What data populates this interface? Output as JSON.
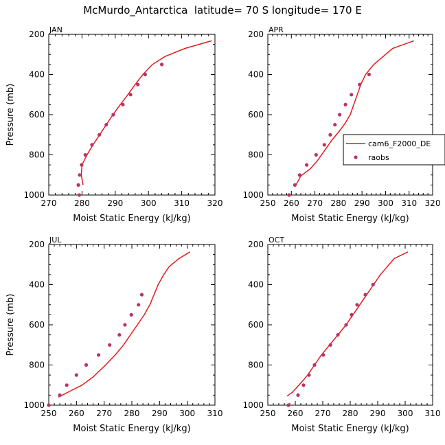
{
  "title": "McMurdo_Antarctica  latitude= 70 S longitude= 170 E",
  "colors": {
    "model": "#e31a1c",
    "obs": "#b8336a"
  },
  "legend": {
    "items": [
      {
        "label": "cam6_F2000_DE",
        "kind": "line"
      },
      {
        "label": "raobs",
        "kind": "marker"
      }
    ]
  },
  "chart_data": [
    {
      "type": "line",
      "panel": "JAN",
      "xlabel": "Moist Static Energy (kJ/kg)",
      "ylabel": "Pressure (mb)",
      "xlim": [
        270,
        320
      ],
      "ylim": [
        1000,
        200
      ],
      "xticks": [
        270,
        280,
        290,
        300,
        310,
        320
      ],
      "yticks": [
        200,
        400,
        600,
        800,
        1000
      ],
      "series": [
        {
          "name": "cam6_F2000_DE",
          "kind": "line",
          "points": [
            [
              280.3,
              950
            ],
            [
              279.8,
              900
            ],
            [
              280,
              850
            ],
            [
              281.5,
              800
            ],
            [
              283.3,
              750
            ],
            [
              285.3,
              700
            ],
            [
              287.3,
              650
            ],
            [
              289.3,
              600
            ],
            [
              291.5,
              550
            ],
            [
              293.8,
              500
            ],
            [
              296,
              450
            ],
            [
              298.3,
              400
            ],
            [
              301.2,
              350
            ],
            [
              305,
              310
            ],
            [
              311,
              270
            ],
            [
              319,
              232
            ]
          ]
        },
        {
          "name": "raobs",
          "kind": "scatter",
          "points": [
            [
              279.2,
              1000
            ],
            [
              278.9,
              950
            ],
            [
              279.3,
              900
            ],
            [
              279.9,
              850
            ],
            [
              281,
              800
            ],
            [
              283,
              750
            ],
            [
              285.2,
              700
            ],
            [
              287.3,
              650
            ],
            [
              289.4,
              600
            ],
            [
              292.3,
              550
            ],
            [
              294.6,
              500
            ],
            [
              296.8,
              450
            ],
            [
              299,
              400
            ],
            [
              304,
              350
            ]
          ]
        }
      ]
    },
    {
      "type": "line",
      "panel": "APR",
      "xlabel": "Moist Static Energy (kJ/kg)",
      "ylabel": "",
      "xlim": [
        250,
        320
      ],
      "ylim": [
        1000,
        200
      ],
      "xticks": [
        250,
        260,
        270,
        280,
        290,
        300,
        310,
        320
      ],
      "yticks": [
        200,
        400,
        600,
        800,
        1000
      ],
      "series": [
        {
          "name": "cam6_F2000_DE",
          "kind": "line",
          "points": [
            [
              262,
              950
            ],
            [
              264,
              905
            ],
            [
              268,
              870
            ],
            [
              271,
              830
            ],
            [
              274,
              780
            ],
            [
              277,
              730
            ],
            [
              280.5,
              680
            ],
            [
              283,
              640
            ],
            [
              285,
              600
            ],
            [
              286.5,
              550
            ],
            [
              288,
              500
            ],
            [
              289.5,
              450
            ],
            [
              291.5,
              400
            ],
            [
              295,
              350
            ],
            [
              303,
              270
            ],
            [
              312,
              232
            ]
          ]
        },
        {
          "name": "raobs",
          "kind": "scatter",
          "points": [
            [
              259,
              1000
            ],
            [
              261.5,
              950
            ],
            [
              263.5,
              900
            ],
            [
              266.5,
              850
            ],
            [
              270.5,
              800
            ],
            [
              274,
              750
            ],
            [
              276.5,
              700
            ],
            [
              278.5,
              650
            ],
            [
              280.5,
              600
            ],
            [
              283,
              550
            ],
            [
              285.5,
              500
            ],
            [
              289,
              450
            ],
            [
              293,
              400
            ]
          ]
        }
      ]
    },
    {
      "type": "line",
      "panel": "JUL",
      "xlabel": "Moist Static Energy (kJ/kg)",
      "ylabel": "Pressure (mb)",
      "xlim": [
        250,
        310
      ],
      "ylim": [
        1000,
        200
      ],
      "xticks": [
        250,
        260,
        270,
        280,
        290,
        300,
        310
      ],
      "yticks": [
        200,
        400,
        600,
        800,
        1000
      ],
      "series": [
        {
          "name": "cam6_F2000_DE",
          "kind": "line",
          "points": [
            [
              253.5,
              960
            ],
            [
              257,
              935
            ],
            [
              262,
              900
            ],
            [
              266,
              860
            ],
            [
              270.5,
              800
            ],
            [
              274,
              750
            ],
            [
              277,
              700
            ],
            [
              279.5,
              650
            ],
            [
              282,
              600
            ],
            [
              284.5,
              550
            ],
            [
              286.5,
              500
            ],
            [
              288,
              450
            ],
            [
              289.5,
              400
            ],
            [
              291.5,
              350
            ],
            [
              293.5,
              310
            ],
            [
              297,
              270
            ],
            [
              301,
              237
            ]
          ]
        },
        {
          "name": "raobs",
          "kind": "scatter",
          "points": [
            [
              250,
              1000
            ],
            [
              254,
              950
            ],
            [
              256.5,
              900
            ],
            [
              260,
              850
            ],
            [
              263.5,
              800
            ],
            [
              268,
              750
            ],
            [
              272,
              700
            ],
            [
              275.5,
              650
            ],
            [
              277.5,
              600
            ],
            [
              279.8,
              550
            ],
            [
              282.4,
              500
            ],
            [
              283.6,
              450
            ]
          ]
        }
      ]
    },
    {
      "type": "line",
      "panel": "OCT",
      "xlabel": "Moist Static Energy (kJ/kg)",
      "ylabel": "",
      "xlim": [
        250,
        310
      ],
      "ylim": [
        1000,
        200
      ],
      "xticks": [
        250,
        260,
        270,
        280,
        290,
        300,
        310
      ],
      "yticks": [
        200,
        400,
        600,
        800,
        1000
      ],
      "series": [
        {
          "name": "cam6_F2000_DE",
          "kind": "line",
          "points": [
            [
              257,
              955
            ],
            [
              259,
              935
            ],
            [
              262,
              890
            ],
            [
              264.5,
              850
            ],
            [
              267,
              800
            ],
            [
              269.5,
              750
            ],
            [
              272.5,
              700
            ],
            [
              275.5,
              650
            ],
            [
              278.5,
              600
            ],
            [
              281,
              550
            ],
            [
              283.5,
              500
            ],
            [
              286,
              450
            ],
            [
              288.5,
              400
            ],
            [
              291,
              350
            ],
            [
              293.5,
              310
            ],
            [
              296,
              270
            ],
            [
              301,
              237
            ]
          ]
        },
        {
          "name": "raobs",
          "kind": "scatter",
          "points": [
            [
              257.5,
              1000
            ],
            [
              261,
              950
            ],
            [
              263,
              900
            ],
            [
              265,
              850
            ],
            [
              267,
              800
            ],
            [
              270.2,
              750
            ],
            [
              272.8,
              700
            ],
            [
              275.5,
              650
            ],
            [
              278.5,
              600
            ],
            [
              280.5,
              550
            ],
            [
              282.5,
              500
            ],
            [
              285.5,
              450
            ],
            [
              288.3,
              400
            ]
          ]
        }
      ]
    }
  ]
}
